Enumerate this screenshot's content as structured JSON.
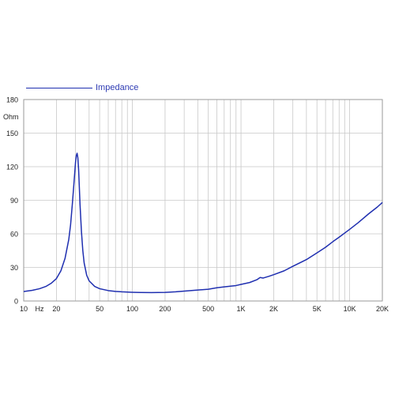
{
  "chart_data": {
    "type": "line",
    "x_scale": "log",
    "xlim": [
      10,
      20000
    ],
    "ylim": [
      0,
      180
    ],
    "ylabel": "Ohm",
    "xlabel": "Hz",
    "grid": true,
    "legend": {
      "position": "top-left",
      "entries": [
        "Impedance"
      ]
    },
    "y_ticks": [
      0,
      30,
      60,
      90,
      120,
      150,
      180
    ],
    "y_tick_labels": [
      "0",
      "30",
      "60",
      "90",
      "120",
      "150",
      "180"
    ],
    "x_ticks": [
      10,
      20,
      50,
      100,
      200,
      500,
      1000,
      2000,
      5000,
      10000,
      20000
    ],
    "x_tick_labels": [
      "10",
      "20",
      "50",
      "100",
      "200",
      "500",
      "1K",
      "2K",
      "5K",
      "10K",
      "20K"
    ],
    "series": [
      {
        "name": "Impedance",
        "color": "#1f2fb0",
        "x": [
          10,
          12,
          14,
          16,
          18,
          20,
          22,
          24,
          26,
          27,
          28,
          29,
          30,
          30.5,
          31,
          31.5,
          32,
          32.5,
          33,
          34,
          35,
          36,
          38,
          40,
          45,
          50,
          60,
          70,
          80,
          100,
          120,
          150,
          200,
          250,
          300,
          400,
          500,
          600,
          700,
          800,
          900,
          1000,
          1200,
          1400,
          1500,
          1600,
          1800,
          2000,
          2500,
          3000,
          4000,
          5000,
          6000,
          7000,
          8000,
          10000,
          12000,
          15000,
          18000,
          20000
        ],
        "y": [
          8.5,
          9.5,
          11,
          13,
          16,
          20,
          27,
          38,
          55,
          68,
          86,
          105,
          124,
          130,
          132,
          128,
          118,
          102,
          86,
          62,
          45,
          34,
          23,
          18,
          13,
          11,
          9.3,
          8.6,
          8.2,
          7.8,
          7.6,
          7.5,
          7.7,
          8.2,
          8.8,
          9.8,
          10.5,
          11.8,
          12.6,
          13.2,
          13.8,
          14.8,
          16.5,
          19,
          21,
          20.5,
          22,
          23.5,
          27,
          31,
          37,
          43,
          48,
          53,
          57,
          64,
          70,
          78,
          84,
          88
        ]
      }
    ]
  }
}
